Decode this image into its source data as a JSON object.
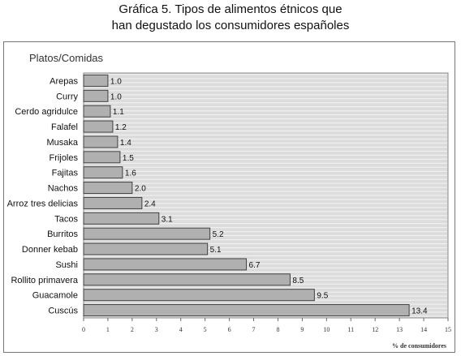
{
  "chart_data": {
    "type": "bar",
    "orientation": "horizontal",
    "title_lines": [
      "Gráfica 5. Tipos de alimentos étnicos que",
      "han degustado los consumidores españoles"
    ],
    "panel_label": "Platos/Comidas",
    "xlabel": "% de consumidores",
    "xlim": [
      0,
      15
    ],
    "xticks": [
      "0",
      "1",
      "2",
      "3",
      "4",
      "5",
      "6",
      "7",
      "8",
      "9",
      "10",
      "11",
      "12",
      "13",
      "14",
      "15"
    ],
    "grid": true,
    "categories": [
      "Arepas",
      "Curry",
      "Cerdo agridulce",
      "Falafel",
      "Musaka",
      "Frijoles",
      "Fajitas",
      "Nachos",
      "Arroz tres delicias",
      "Tacos",
      "Burritos",
      "Donner kebab",
      "Sushi",
      "Rollito primavera",
      "Guacamole",
      "Cuscús"
    ],
    "values": [
      1.0,
      1.0,
      1.1,
      1.2,
      1.4,
      1.5,
      1.6,
      2.0,
      2.4,
      3.1,
      5.2,
      5.1,
      6.7,
      8.5,
      9.5,
      13.4
    ],
    "value_labels": [
      "1.0",
      "1.0",
      "1.1",
      "1.2",
      "1.4",
      "1.5",
      "1.6",
      "2.0",
      "2.4",
      "3.1",
      "5.2",
      "5.1",
      "6.7",
      "8.5",
      "9.5",
      "13.4"
    ],
    "colors": {
      "bar": "#b0b0b0",
      "bar_stroke": "#404040",
      "plot_bg": "#dcdcdc",
      "grid": "#f4f4f4"
    }
  }
}
